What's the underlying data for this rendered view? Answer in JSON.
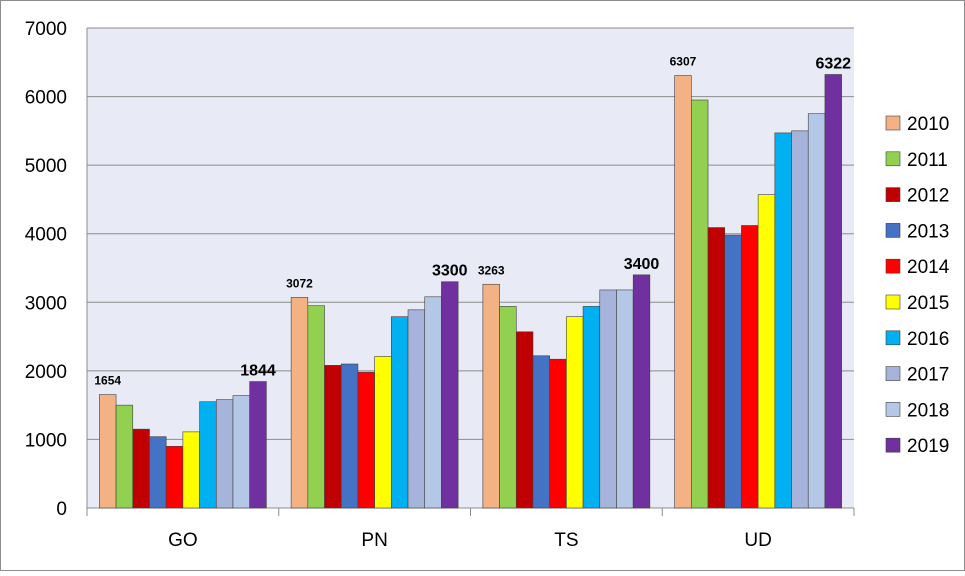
{
  "chart_data": {
    "type": "bar",
    "title": "",
    "xlabel": "",
    "ylabel": "",
    "ylim": [
      0,
      7000
    ],
    "yticks": [
      "0",
      "1000",
      "2000",
      "3000",
      "4000",
      "5000",
      "6000",
      "7000"
    ],
    "grid": true,
    "legend_position": "right",
    "categories": [
      "GO",
      "PN",
      "TS",
      "UD"
    ],
    "series": [
      {
        "name": "2010",
        "color": "#f4b183",
        "values": [
          1654,
          3072,
          3263,
          6307
        ]
      },
      {
        "name": "2011",
        "color": "#92d050",
        "values": [
          1500,
          2950,
          2940,
          5950
        ]
      },
      {
        "name": "2012",
        "color": "#c00000",
        "values": [
          1150,
          2080,
          2570,
          4090
        ]
      },
      {
        "name": "2013",
        "color": "#4472c4",
        "values": [
          1040,
          2100,
          2220,
          3980
        ]
      },
      {
        "name": "2014",
        "color": "#ff0000",
        "values": [
          900,
          1980,
          2170,
          4120
        ]
      },
      {
        "name": "2015",
        "color": "#ffff00",
        "values": [
          1110,
          2210,
          2790,
          4570
        ]
      },
      {
        "name": "2016",
        "color": "#00b0f0",
        "values": [
          1550,
          2790,
          2940,
          5470
        ]
      },
      {
        "name": "2017",
        "color": "#a6b4db",
        "values": [
          1580,
          2890,
          3180,
          5500
        ]
      },
      {
        "name": "2018",
        "color": "#b4c7e7",
        "values": [
          1640,
          3080,
          3180,
          5750
        ]
      },
      {
        "name": "2019",
        "color": "#7030a0",
        "values": [
          1844,
          3300,
          3400,
          6322
        ]
      }
    ],
    "data_labels": [
      {
        "category": "GO",
        "series": "2010",
        "text": "1654",
        "bold": true,
        "size": "small"
      },
      {
        "category": "GO",
        "series": "2019",
        "text": "1844",
        "bold": true,
        "size": "large"
      },
      {
        "category": "PN",
        "series": "2010",
        "text": "3072",
        "bold": true,
        "size": "small"
      },
      {
        "category": "PN",
        "series": "2019",
        "text": "3300",
        "bold": true,
        "size": "large"
      },
      {
        "category": "TS",
        "series": "2010",
        "text": "3263",
        "bold": true,
        "size": "small"
      },
      {
        "category": "TS",
        "series": "2019",
        "text": "3400",
        "bold": true,
        "size": "large"
      },
      {
        "category": "UD",
        "series": "2010",
        "text": "6307",
        "bold": true,
        "size": "small"
      },
      {
        "category": "UD",
        "series": "2019",
        "text": "6322",
        "bold": true,
        "size": "large"
      }
    ],
    "plot_background": "#e8eaf6",
    "gridline_color": "#8c8c8c",
    "border_color": "#8c8c8c"
  }
}
